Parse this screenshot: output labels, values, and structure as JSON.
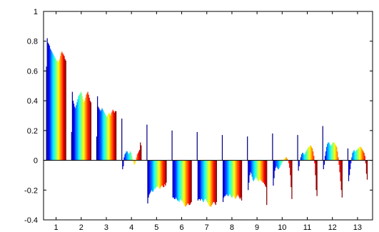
{
  "chart_data": {
    "type": "bar",
    "title": "",
    "xlabel": "",
    "ylabel": "",
    "categories": [
      "1",
      "2",
      "3",
      "4",
      "5",
      "6",
      "7",
      "8",
      "9",
      "10",
      "11",
      "12",
      "13"
    ],
    "ylim": [
      -0.4,
      1.0
    ],
    "yticks": [
      -0.4,
      -0.2,
      0,
      0.2,
      0.4,
      0.6,
      0.8,
      1
    ],
    "ytick_labels": [
      "-0.4",
      "-0.2",
      "0",
      "0.2",
      "0.4",
      "0.6",
      "0.8",
      "1"
    ],
    "grid": false,
    "legend": "none",
    "colormap": "jet",
    "bar_groups": [
      {
        "category": "1",
        "values": [
          0.63,
          0.82,
          0.79,
          0.78,
          0.77,
          0.75,
          0.74,
          0.73,
          0.72,
          0.71,
          0.7,
          0.69,
          0.68,
          0.67,
          0.67,
          0.66,
          0.67,
          0.68,
          0.7,
          0.72,
          0.73,
          0.72,
          0.71,
          0.7,
          0.68,
          0.67
        ]
      },
      {
        "category": "2",
        "values": [
          0.19,
          0.46,
          0.4,
          0.38,
          0.36,
          0.35,
          0.37,
          0.39,
          0.41,
          0.43,
          0.44,
          0.45,
          0.46,
          0.45,
          0.43,
          0.41,
          0.39,
          0.4,
          0.42,
          0.44,
          0.45,
          0.46,
          0.44,
          0.42,
          0.4,
          0.39
        ]
      },
      {
        "category": "3",
        "values": [
          0.16,
          0.43,
          0.36,
          0.35,
          0.34,
          0.33,
          0.34,
          0.35,
          0.34,
          0.33,
          0.32,
          0.31,
          0.3,
          0.29,
          0.3,
          0.31,
          0.32,
          0.31,
          0.3,
          0.32,
          0.33,
          0.34,
          0.33,
          0.32,
          0.33,
          0.33
        ]
      },
      {
        "category": "4",
        "values": [
          0.28,
          -0.06,
          -0.04,
          0.02,
          0.04,
          0.05,
          0.06,
          0.06,
          0.05,
          0.04,
          0.05,
          0.06,
          0.05,
          0.03,
          0.01,
          -0.01,
          -0.03,
          -0.02,
          0.0,
          0.02,
          0.04,
          0.05,
          0.06,
          0.07,
          0.12,
          0.1
        ]
      },
      {
        "category": "5",
        "values": [
          0.24,
          -0.29,
          -0.25,
          -0.23,
          -0.22,
          -0.21,
          -0.2,
          -0.21,
          -0.21,
          -0.2,
          -0.19,
          -0.19,
          -0.18,
          -0.18,
          -0.17,
          -0.18,
          -0.19,
          -0.19,
          -0.18,
          -0.17,
          -0.17,
          -0.18,
          -0.18,
          -0.16,
          -0.17,
          -0.15
        ]
      },
      {
        "category": "6",
        "values": [
          0.2,
          -0.25,
          -0.25,
          -0.26,
          -0.26,
          -0.25,
          -0.26,
          -0.27,
          -0.27,
          -0.28,
          -0.27,
          -0.26,
          -0.27,
          -0.27,
          -0.28,
          -0.29,
          -0.3,
          -0.31,
          -0.31,
          -0.3,
          -0.29,
          -0.29,
          -0.3,
          -0.3,
          -0.29,
          -0.28
        ]
      },
      {
        "category": "7",
        "values": [
          0.19,
          -0.27,
          -0.26,
          -0.26,
          -0.27,
          -0.26,
          -0.26,
          -0.27,
          -0.28,
          -0.27,
          -0.26,
          -0.26,
          -0.27,
          -0.28,
          -0.29,
          -0.3,
          -0.31,
          -0.31,
          -0.31,
          -0.3,
          -0.29,
          -0.28,
          -0.28,
          -0.29,
          -0.3,
          -0.28
        ]
      },
      {
        "category": "8",
        "values": [
          0.17,
          -0.28,
          -0.25,
          -0.24,
          -0.24,
          -0.23,
          -0.23,
          -0.24,
          -0.24,
          -0.23,
          -0.23,
          -0.24,
          -0.25,
          -0.25,
          -0.24,
          -0.24,
          -0.25,
          -0.26,
          -0.25,
          -0.24,
          -0.23,
          -0.24,
          -0.25,
          -0.26,
          -0.25,
          -0.27
        ]
      },
      {
        "category": "9",
        "values": [
          0.16,
          -0.2,
          -0.15,
          -0.1,
          -0.08,
          -0.09,
          -0.11,
          -0.13,
          -0.14,
          -0.13,
          -0.12,
          -0.11,
          -0.12,
          -0.13,
          -0.14,
          -0.14,
          -0.13,
          -0.13,
          -0.14,
          -0.14,
          -0.15,
          -0.15,
          -0.16,
          -0.17,
          -0.18,
          -0.3
        ]
      },
      {
        "category": "10",
        "values": [
          0.18,
          -0.17,
          -0.12,
          -0.07,
          -0.05,
          -0.04,
          -0.05,
          -0.06,
          -0.06,
          -0.05,
          -0.04,
          -0.03,
          -0.02,
          -0.01,
          0.0,
          0.01,
          0.01,
          0.02,
          0.02,
          0.01,
          0.0,
          -0.02,
          -0.05,
          -0.1,
          -0.18,
          -0.26
        ]
      },
      {
        "category": "11",
        "values": [
          0.17,
          -0.07,
          -0.04,
          0.0,
          0.02,
          0.04,
          0.05,
          0.05,
          0.04,
          0.04,
          0.05,
          0.06,
          0.07,
          0.08,
          0.09,
          0.09,
          0.1,
          0.1,
          0.09,
          0.08,
          0.06,
          0.03,
          -0.02,
          -0.1,
          -0.2,
          -0.24
        ]
      },
      {
        "category": "12",
        "values": [
          0.23,
          -0.06,
          -0.03,
          0.03,
          0.06,
          0.09,
          0.11,
          0.12,
          0.12,
          0.11,
          0.1,
          0.1,
          0.11,
          0.12,
          0.12,
          0.12,
          0.11,
          0.1,
          0.09,
          0.06,
          0.02,
          -0.03,
          -0.08,
          -0.14,
          -0.2,
          -0.25
        ]
      },
      {
        "category": "13",
        "values": [
          0.08,
          -0.14,
          -0.1,
          -0.06,
          -0.02,
          0.02,
          0.05,
          0.06,
          0.07,
          0.06,
          0.06,
          0.07,
          0.07,
          0.08,
          0.08,
          0.09,
          0.09,
          0.09,
          0.08,
          0.07,
          0.06,
          0.05,
          0.03,
          -0.02,
          -0.09,
          -0.13
        ]
      }
    ]
  }
}
